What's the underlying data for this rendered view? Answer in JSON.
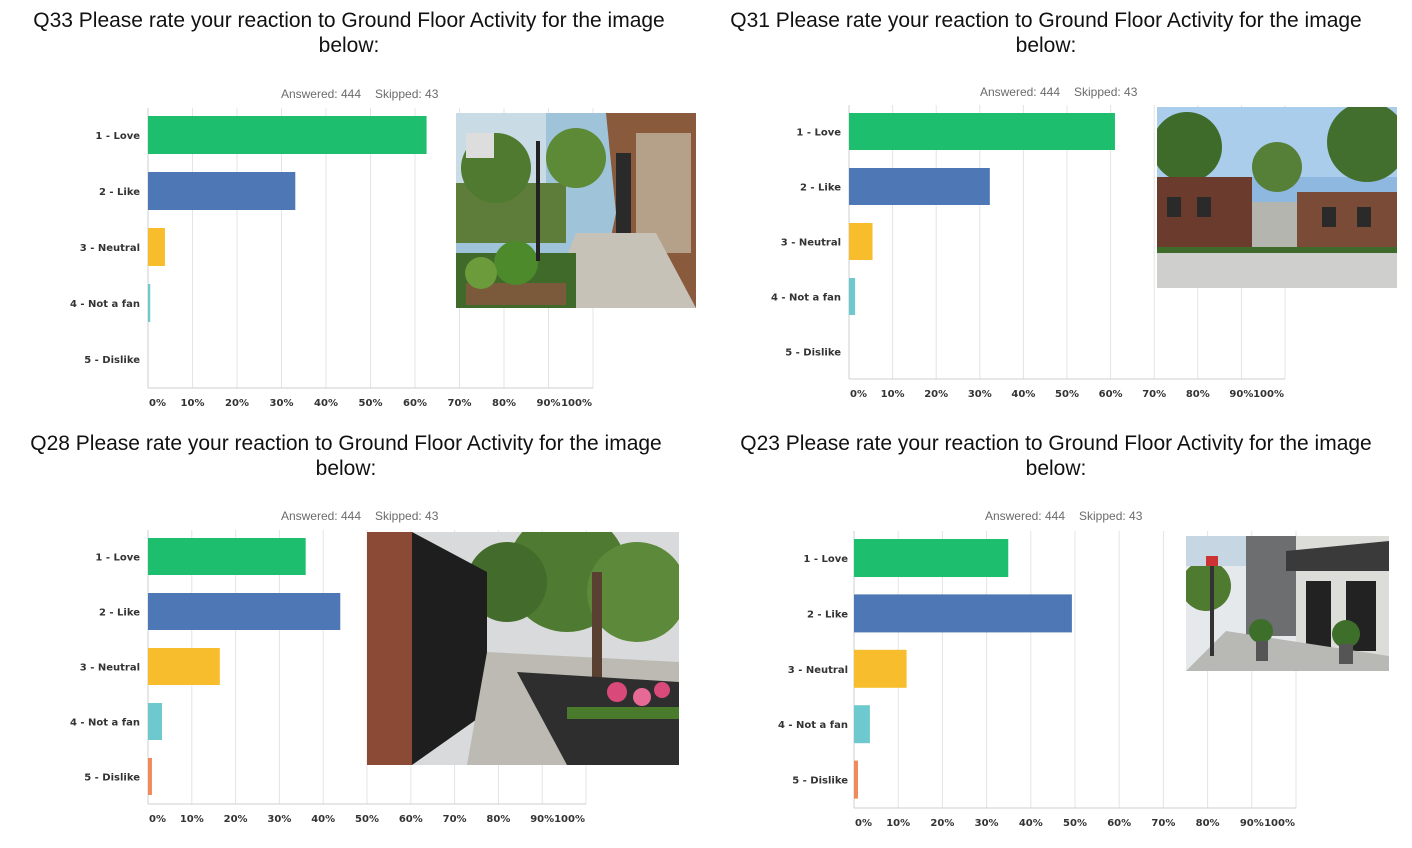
{
  "colors": {
    "love": "#1dbf6e",
    "like": "#4d78b5",
    "neutral": "#f7bd2d",
    "not_a_fan": "#6ec9cf",
    "dislike": "#f08a5a",
    "grid": "#e4e4e4",
    "axis": "#cfcfcf"
  },
  "chart_data": [
    {
      "type": "bar",
      "orientation": "horizontal",
      "title": "Q33 Please rate your reaction to Ground Floor Activity for the image below:",
      "answered": "Answered: 444",
      "skipped": "Skipped: 43",
      "categories": [
        "1 - Love",
        "2 - Like",
        "3 - Neutral",
        "4 - Not a fan",
        "5 - Dislike"
      ],
      "values": [
        62.6,
        33.1,
        3.8,
        0.5,
        0
      ],
      "xlim": [
        0,
        100
      ],
      "ticks": [
        "0%",
        "10%",
        "20%",
        "30%",
        "40%",
        "50%",
        "60%",
        "70%",
        "80%",
        "90%",
        "100%"
      ],
      "grid": true
    },
    {
      "type": "bar",
      "orientation": "horizontal",
      "title": "Q31 Please rate your reaction to Ground Floor Activity for the image below:",
      "answered": "Answered: 444",
      "skipped": "Skipped: 43",
      "categories": [
        "1 - Love",
        "2 - Like",
        "3 - Neutral",
        "4 - Not a fan",
        "5 - Dislike"
      ],
      "values": [
        61.0,
        32.3,
        5.4,
        1.4,
        0
      ],
      "xlim": [
        0,
        100
      ],
      "ticks": [
        "0%",
        "10%",
        "20%",
        "30%",
        "40%",
        "50%",
        "60%",
        "70%",
        "80%",
        "90%",
        "100%"
      ],
      "grid": true
    },
    {
      "type": "bar",
      "orientation": "horizontal",
      "title": "Q28 Please rate your reaction to Ground Floor Activity for the image below:",
      "answered": "Answered: 444",
      "skipped": "Skipped: 43",
      "categories": [
        "1 - Love",
        "2 - Like",
        "3 - Neutral",
        "4 - Not a fan",
        "5 - Dislike"
      ],
      "values": [
        36.0,
        43.9,
        16.4,
        3.2,
        0.9
      ],
      "xlim": [
        0,
        100
      ],
      "ticks": [
        "0%",
        "10%",
        "20%",
        "30%",
        "40%",
        "50%",
        "60%",
        "70%",
        "80%",
        "90%",
        "100%"
      ],
      "grid": true
    },
    {
      "type": "bar",
      "orientation": "horizontal",
      "title": "Q23 Please rate your reaction to Ground Floor Activity for the image below:",
      "answered": "Answered: 444",
      "skipped": "Skipped: 43",
      "categories": [
        "1 - Love",
        "2 - Like",
        "3 - Neutral",
        "4 - Not a fan",
        "5 - Dislike"
      ],
      "values": [
        34.9,
        49.3,
        11.9,
        3.6,
        0.9
      ],
      "xlim": [
        0,
        100
      ],
      "ticks": [
        "0%",
        "10%",
        "20%",
        "30%",
        "40%",
        "50%",
        "60%",
        "70%",
        "80%",
        "90%",
        "100%"
      ],
      "grid": true
    }
  ]
}
